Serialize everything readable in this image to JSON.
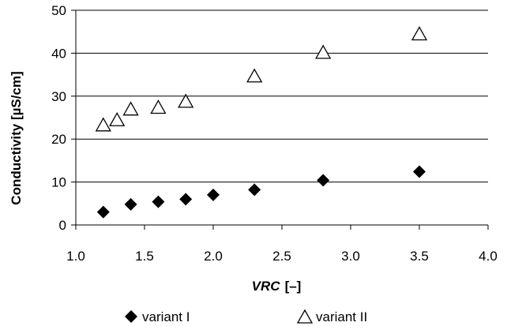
{
  "chart_data": {
    "type": "scatter",
    "xlabel_main": "VRC",
    "xlabel_unit": "[–]",
    "ylabel": "Conductivity [µS/cm]",
    "xlim": [
      1.0,
      4.0
    ],
    "ylim": [
      0,
      50
    ],
    "x_ticks": [
      "1.0",
      "1.5",
      "2.0",
      "2.5",
      "3.0",
      "3.5",
      "4.0"
    ],
    "y_ticks": [
      "0",
      "10",
      "20",
      "30",
      "40",
      "50"
    ],
    "grid": "horizontal",
    "legend_position": "bottom",
    "series": [
      {
        "name": "variant I",
        "marker": "filled-diamond",
        "color": "#000000",
        "points": [
          {
            "x": 1.2,
            "y": 3.0
          },
          {
            "x": 1.4,
            "y": 4.8
          },
          {
            "x": 1.6,
            "y": 5.4
          },
          {
            "x": 1.8,
            "y": 6.0
          },
          {
            "x": 2.0,
            "y": 7.0
          },
          {
            "x": 2.3,
            "y": 8.2
          },
          {
            "x": 2.8,
            "y": 10.4
          },
          {
            "x": 3.5,
            "y": 12.4
          }
        ]
      },
      {
        "name": "variant II",
        "marker": "open-triangle",
        "color": "#000000",
        "points": [
          {
            "x": 1.2,
            "y": 23.2
          },
          {
            "x": 1.3,
            "y": 24.4
          },
          {
            "x": 1.4,
            "y": 26.9
          },
          {
            "x": 1.6,
            "y": 27.3
          },
          {
            "x": 1.8,
            "y": 28.7
          },
          {
            "x": 2.3,
            "y": 34.6
          },
          {
            "x": 2.8,
            "y": 40.1
          },
          {
            "x": 3.5,
            "y": 44.4
          }
        ]
      }
    ]
  }
}
